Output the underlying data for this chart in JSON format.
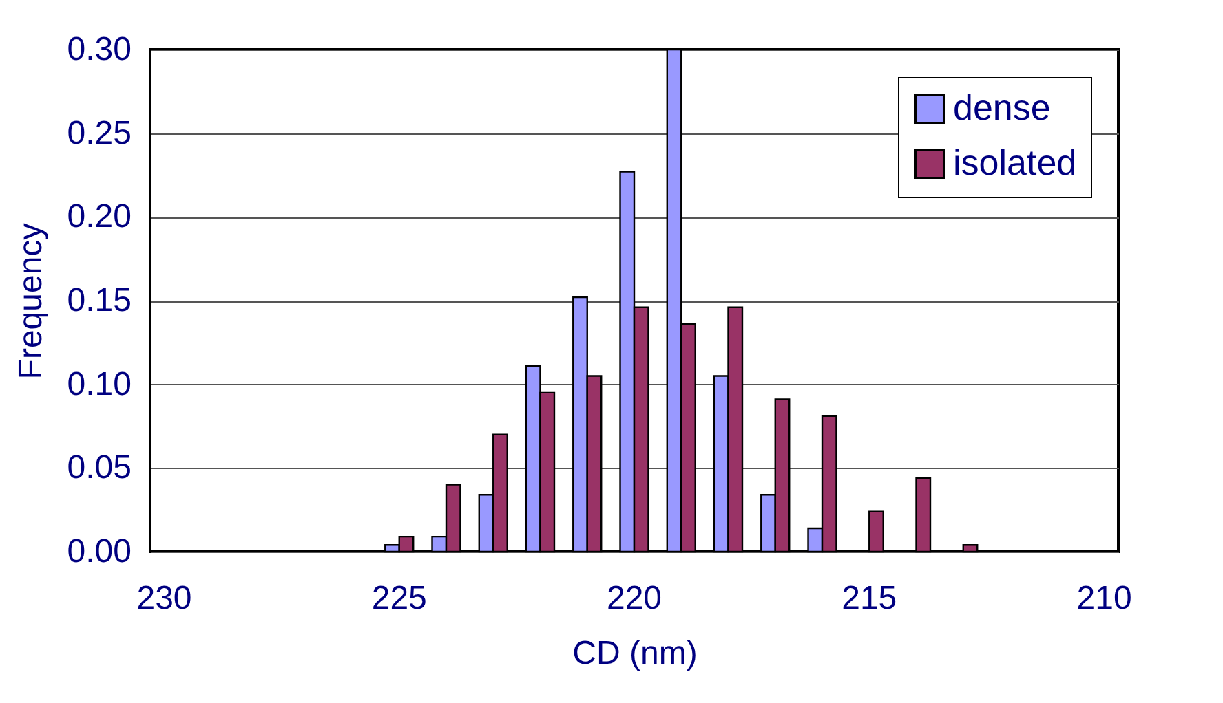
{
  "chart_data": {
    "type": "bar",
    "xlabel": "CD (nm)",
    "ylabel": "Frequency",
    "categories": [
      "230",
      null,
      null,
      null,
      null,
      "225",
      null,
      null,
      null,
      null,
      "220",
      null,
      null,
      null,
      null,
      "215",
      null,
      null,
      null,
      null,
      "210"
    ],
    "series": [
      {
        "name": "dense",
        "color": "#9999ff",
        "values": [
          null,
          null,
          null,
          null,
          null,
          0.004,
          0.009,
          0.034,
          0.111,
          0.152,
          0.227,
          0.3,
          0.105,
          0.034,
          0.014,
          null,
          null,
          null,
          null,
          null,
          null
        ]
      },
      {
        "name": "isolated",
        "color": "#993366",
        "values": [
          null,
          null,
          null,
          null,
          null,
          0.009,
          0.04,
          0.07,
          0.095,
          0.105,
          0.146,
          0.136,
          0.146,
          0.091,
          0.081,
          0.024,
          0.044,
          0.004,
          null,
          null,
          null
        ]
      }
    ],
    "ylim": [
      0,
      0.3
    ],
    "yticks": [
      {
        "value": 0,
        "label": "0.00"
      },
      {
        "value": 0.05,
        "label": "0.05"
      },
      {
        "value": 0.1,
        "label": "0.10"
      },
      {
        "value": 0.15,
        "label": "0.15"
      },
      {
        "value": 0.2,
        "label": "0.20"
      },
      {
        "value": 0.25,
        "label": "0.25"
      },
      {
        "value": 0.3,
        "label": "0.30"
      }
    ],
    "grid": "y",
    "legend": "top right"
  }
}
